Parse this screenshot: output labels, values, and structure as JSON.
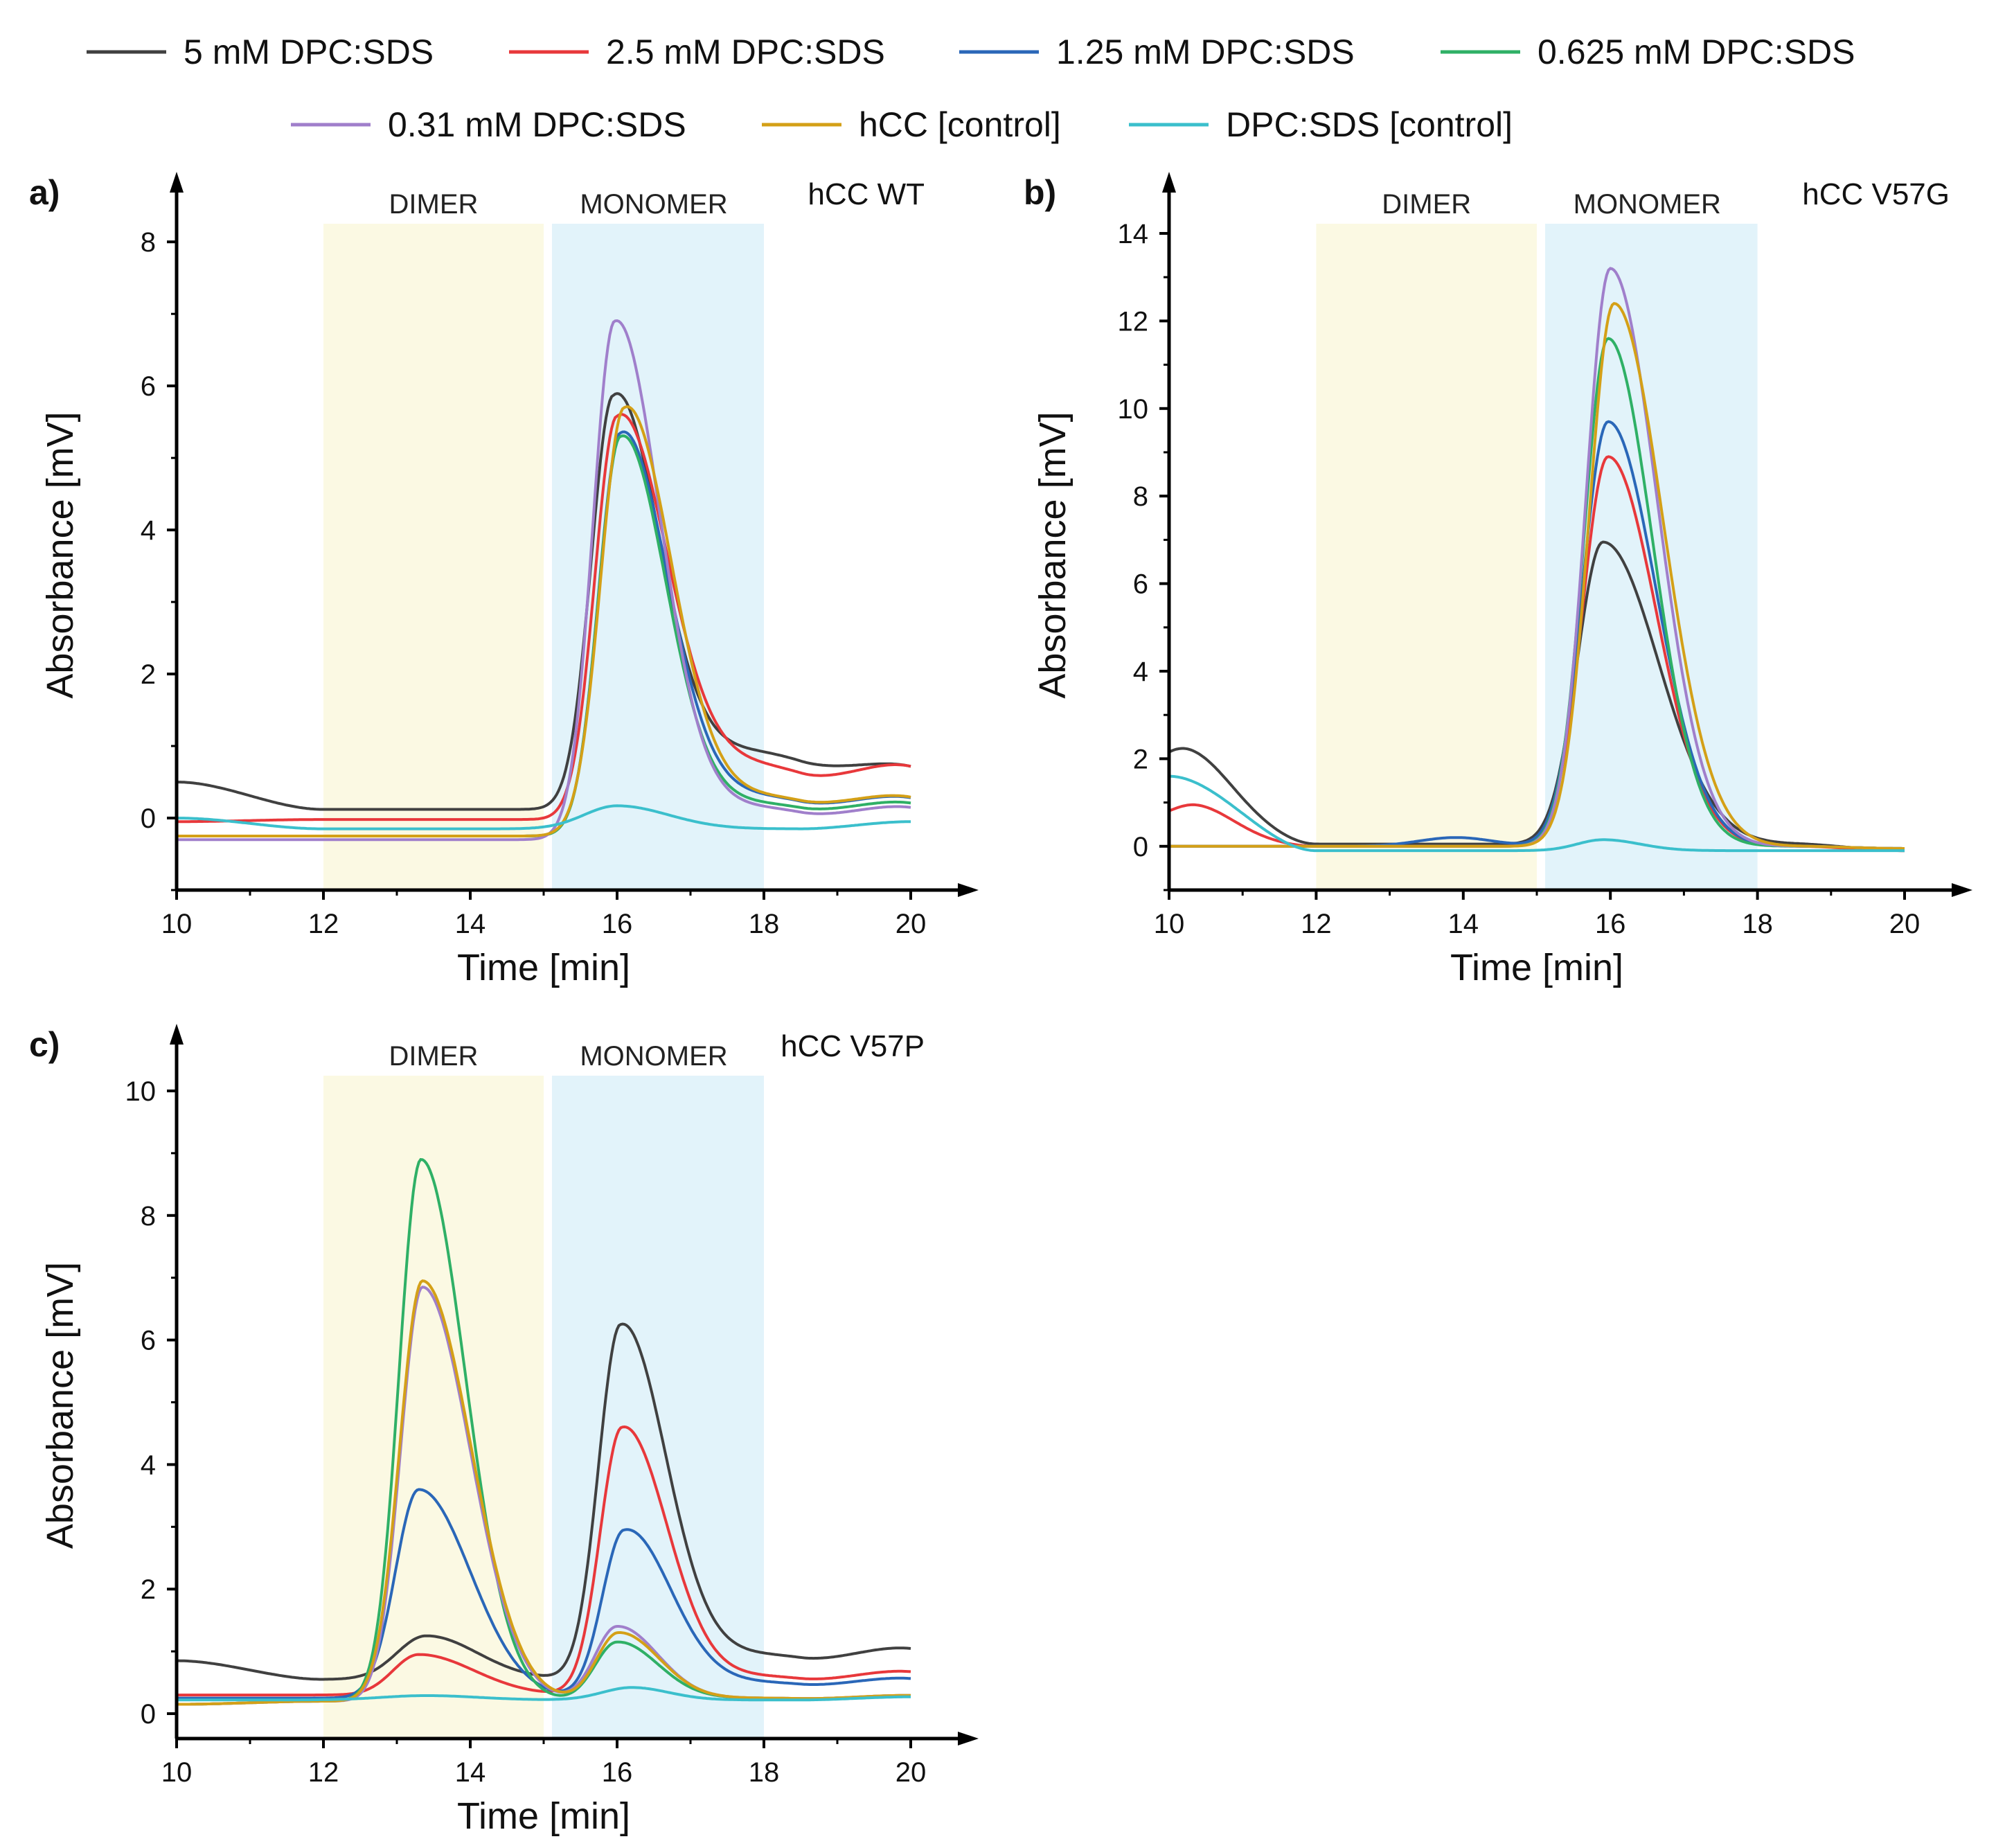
{
  "legend": [
    {
      "label": "5 mM DPC:SDS",
      "color": "#404040"
    },
    {
      "label": "2.5 mM DPC:SDS",
      "color": "#e8383b"
    },
    {
      "label": "1.25 mM DPC:SDS",
      "color": "#2a67b8"
    },
    {
      "label": "0.625 mM DPC:SDS",
      "color": "#2fb066"
    },
    {
      "label": "0.31 mM DPC:SDS",
      "color": "#a07fcb"
    },
    {
      "label": "hCC [control]",
      "color": "#d4a017"
    },
    {
      "label": "DPC:SDS [control]",
      "color": "#3bbfcc"
    }
  ],
  "regions": {
    "dimer": {
      "label": "DIMER",
      "color": "#fbf9e3"
    },
    "monomer": {
      "label": "MONOMER",
      "color": "#e2f3fa"
    }
  },
  "chart_data": [
    {
      "panel": "a)",
      "type": "line",
      "title": "hCC WT",
      "xlabel": "Time [min]",
      "ylabel": "Absorbance [mV]",
      "xlim": [
        10,
        20
      ],
      "ylim": [
        -1,
        8.3
      ],
      "xticks": [
        10,
        12,
        14,
        16,
        18,
        20
      ],
      "yticks": [
        0,
        2,
        4,
        6,
        8
      ],
      "regions": [
        {
          "name": "dimer",
          "x": [
            12,
            15
          ]
        },
        {
          "name": "monomer",
          "x": [
            15,
            18
          ]
        }
      ],
      "series": [
        {
          "name": "5 mM DPC:SDS",
          "base_start": 0.5,
          "base_end": 0.55,
          "plateau": 0.12,
          "peaks": [
            {
              "c": 15.95,
              "h": 5.75,
              "sl": 0.3,
              "sr": 0.6
            }
          ],
          "tail": 0.8
        },
        {
          "name": "2.5 mM DPC:SDS",
          "base_start": -0.05,
          "base_end": 0.55,
          "plateau": -0.02,
          "peaks": [
            {
              "c": 16.0,
              "h": 5.6,
              "sl": 0.3,
              "sr": 0.65
            }
          ],
          "tail": 0.75
        },
        {
          "name": "1.25 mM DPC:SDS",
          "base_start": -0.25,
          "base_end": 0.15,
          "plateau": -0.25,
          "peaks": [
            {
              "c": 16.05,
              "h": 5.6,
              "sl": 0.3,
              "sr": 0.62
            }
          ],
          "tail": 0.55
        },
        {
          "name": "0.625 mM DPC:SDS",
          "base_start": -0.25,
          "base_end": 0.1,
          "plateau": -0.25,
          "peaks": [
            {
              "c": 16.05,
              "h": 5.55,
              "sl": 0.3,
              "sr": 0.6
            }
          ],
          "tail": 0.45
        },
        {
          "name": "0.31 mM DPC:SDS",
          "base_start": -0.3,
          "base_end": 0.05,
          "plateau": -0.3,
          "peaks": [
            {
              "c": 15.97,
              "h": 7.2,
              "sl": 0.3,
              "sr": 0.6
            }
          ],
          "tail": 0.45
        },
        {
          "name": "hCC [control]",
          "base_start": -0.25,
          "base_end": 0.15,
          "plateau": -0.25,
          "peaks": [
            {
              "c": 16.1,
              "h": 5.95,
              "sl": 0.32,
              "sr": 0.62
            }
          ],
          "tail": 0.55
        },
        {
          "name": "DPC:SDS [control]",
          "base_start": 0.0,
          "base_end": -0.05,
          "plateau": -0.15,
          "peaks": [
            {
              "c": 16.0,
              "h": 0.32,
              "sl": 0.45,
              "sr": 0.7
            }
          ],
          "tail": 0.0
        }
      ]
    },
    {
      "panel": "b)",
      "type": "line",
      "title": "hCC V57G",
      "xlabel": "Time [min]",
      "ylabel": "Absorbance [mV]",
      "xlim": [
        10,
        20
      ],
      "ylim": [
        -1,
        14.3
      ],
      "xticks": [
        10,
        12,
        14,
        16,
        18,
        20
      ],
      "yticks": [
        0,
        2,
        4,
        6,
        8,
        10,
        12,
        14
      ],
      "regions": [
        {
          "name": "dimer",
          "x": [
            12,
            15
          ]
        },
        {
          "name": "monomer",
          "x": [
            15,
            18
          ]
        }
      ],
      "series": [
        {
          "name": "5 mM DPC:SDS",
          "base_start": 1.7,
          "base_end": -0.1,
          "plateau": 0.05,
          "peaks": [
            {
              "c": 10.3,
              "h": 0.6,
              "sl": 0.4,
              "sr": 0.5
            },
            {
              "c": 15.9,
              "h": 6.9,
              "sl": 0.35,
              "sr": 0.75
            }
          ],
          "tail": 0.0
        },
        {
          "name": "2.5 mM DPC:SDS",
          "base_start": 0.6,
          "base_end": -0.1,
          "plateau": 0.0,
          "peaks": [
            {
              "c": 10.4,
              "h": 0.4,
              "sl": 0.35,
              "sr": 0.45
            },
            {
              "c": 15.97,
              "h": 8.9,
              "sl": 0.35,
              "sr": 0.65
            }
          ],
          "tail": 0.0
        },
        {
          "name": "1.25 mM DPC:SDS",
          "base_start": 0.0,
          "base_end": -0.05,
          "plateau": 0.0,
          "peaks": [
            {
              "c": 13.9,
              "h": 0.2,
              "sl": 0.5,
              "sr": 0.5
            },
            {
              "c": 15.97,
              "h": 9.7,
              "sl": 0.35,
              "sr": 0.65
            }
          ],
          "tail": 0.0
        },
        {
          "name": "0.625 mM DPC:SDS",
          "base_start": 0.0,
          "base_end": -0.05,
          "plateau": 0.0,
          "peaks": [
            {
              "c": 15.97,
              "h": 11.6,
              "sl": 0.33,
              "sr": 0.6
            }
          ],
          "tail": 0.0
        },
        {
          "name": "0.31 mM DPC:SDS",
          "base_start": 0.0,
          "base_end": -0.05,
          "plateau": 0.0,
          "peaks": [
            {
              "c": 16.0,
              "h": 13.2,
              "sl": 0.33,
              "sr": 0.63
            }
          ],
          "tail": 0.0
        },
        {
          "name": "hCC [control]",
          "base_start": 0.0,
          "base_end": -0.05,
          "plateau": 0.0,
          "peaks": [
            {
              "c": 16.05,
              "h": 12.4,
              "sl": 0.34,
              "sr": 0.66
            }
          ],
          "tail": 0.0
        },
        {
          "name": "DPC:SDS [control]",
          "base_start": 1.6,
          "base_end": -0.1,
          "plateau": -0.1,
          "peaks": [
            {
              "c": 15.9,
              "h": 0.25,
              "sl": 0.35,
              "sr": 0.5
            }
          ],
          "tail": 0.0
        }
      ]
    },
    {
      "panel": "c)",
      "type": "line",
      "title": "hCC V57P",
      "xlabel": "Time [min]",
      "ylabel": "Absorbance [mV]",
      "xlim": [
        10,
        20
      ],
      "ylim": [
        -0.4,
        10.3
      ],
      "xticks": [
        10,
        12,
        14,
        16,
        18,
        20
      ],
      "yticks": [
        0,
        2,
        4,
        6,
        8,
        10
      ],
      "regions": [
        {
          "name": "dimer",
          "x": [
            12,
            15
          ]
        },
        {
          "name": "monomer",
          "x": [
            15,
            18
          ]
        }
      ],
      "series": [
        {
          "name": "5 mM DPC:SDS",
          "base_start": 0.85,
          "base_end": 0.95,
          "plateau": 0.55,
          "peaks": [
            {
              "c": 13.4,
              "h": 0.7,
              "sl": 0.4,
              "sr": 0.7
            },
            {
              "c": 16.05,
              "h": 5.7,
              "sl": 0.3,
              "sr": 0.6
            }
          ],
          "tail": 0.4
        },
        {
          "name": "2.5 mM DPC:SDS",
          "base_start": 0.3,
          "base_end": 0.6,
          "plateau": 0.3,
          "peaks": [
            {
              "c": 13.3,
              "h": 0.65,
              "sl": 0.35,
              "sr": 0.75
            },
            {
              "c": 16.07,
              "h": 4.3,
              "sl": 0.3,
              "sr": 0.6
            }
          ],
          "tail": 0.3
        },
        {
          "name": "1.25 mM DPC:SDS",
          "base_start": 0.25,
          "base_end": 0.5,
          "plateau": 0.25,
          "peaks": [
            {
              "c": 13.3,
              "h": 3.35,
              "sl": 0.32,
              "sr": 0.7
            },
            {
              "c": 16.1,
              "h": 2.7,
              "sl": 0.3,
              "sr": 0.62
            }
          ],
          "tail": 0.25
        },
        {
          "name": "0.625 mM DPC:SDS",
          "base_start": 0.15,
          "base_end": 0.28,
          "plateau": 0.2,
          "peaks": [
            {
              "c": 13.33,
              "h": 8.7,
              "sl": 0.3,
              "sr": 0.6
            },
            {
              "c": 16.0,
              "h": 0.95,
              "sl": 0.3,
              "sr": 0.55
            }
          ],
          "tail": 0.05
        },
        {
          "name": "0.31 mM DPC:SDS",
          "base_start": 0.15,
          "base_end": 0.28,
          "plateau": 0.2,
          "peaks": [
            {
              "c": 13.35,
              "h": 6.65,
              "sl": 0.3,
              "sr": 0.65
            },
            {
              "c": 16.0,
              "h": 1.2,
              "sl": 0.3,
              "sr": 0.55
            }
          ],
          "tail": 0.05
        },
        {
          "name": "hCC [control]",
          "base_start": 0.15,
          "base_end": 0.28,
          "plateau": 0.2,
          "peaks": [
            {
              "c": 13.35,
              "h": 6.75,
              "sl": 0.31,
              "sr": 0.66
            },
            {
              "c": 16.02,
              "h": 1.1,
              "sl": 0.3,
              "sr": 0.55
            }
          ],
          "tail": 0.05
        },
        {
          "name": "DPC:SDS [control]",
          "base_start": 0.22,
          "base_end": 0.27,
          "plateau": 0.22,
          "peaks": [
            {
              "c": 13.4,
              "h": 0.07,
              "sl": 0.6,
              "sr": 0.7
            },
            {
              "c": 16.2,
              "h": 0.2,
              "sl": 0.4,
              "sr": 0.5
            }
          ],
          "tail": 0.0
        }
      ]
    }
  ]
}
